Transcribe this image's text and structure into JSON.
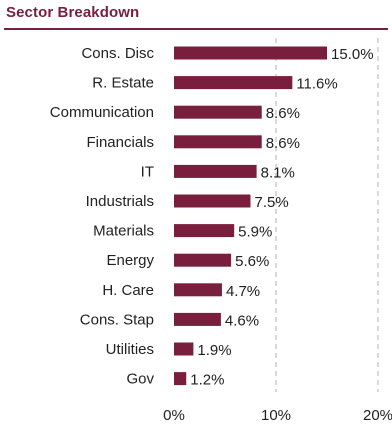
{
  "title": "Sector Breakdown",
  "colors": {
    "accent": "#7a1e3d",
    "bar": "#7a1e3d",
    "grid": "#b3b3b3"
  },
  "chart_data": {
    "type": "bar",
    "orientation": "horizontal",
    "title": "Sector Breakdown",
    "categories": [
      "Cons. Disc",
      "R. Estate",
      "Communication",
      "Financials",
      "IT",
      "Industrials",
      "Materials",
      "Energy",
      "H. Care",
      "Cons. Stap",
      "Utilities",
      "Gov"
    ],
    "values": [
      15.0,
      11.6,
      8.6,
      8.6,
      8.1,
      7.5,
      5.9,
      5.6,
      4.7,
      4.6,
      1.9,
      1.2
    ],
    "labels": [
      "15.0%",
      "11.6%",
      "8.6%",
      "8.6%",
      "8.1%",
      "7.5%",
      "5.9%",
      "5.6%",
      "4.7%",
      "4.6%",
      "1.9%",
      "1.2%"
    ],
    "xlim": [
      0,
      20
    ],
    "ticks": [
      0,
      10,
      20
    ],
    "tick_labels": [
      "0%",
      "10%",
      "20%"
    ],
    "grid": "vertical dashed",
    "legend": "none"
  }
}
